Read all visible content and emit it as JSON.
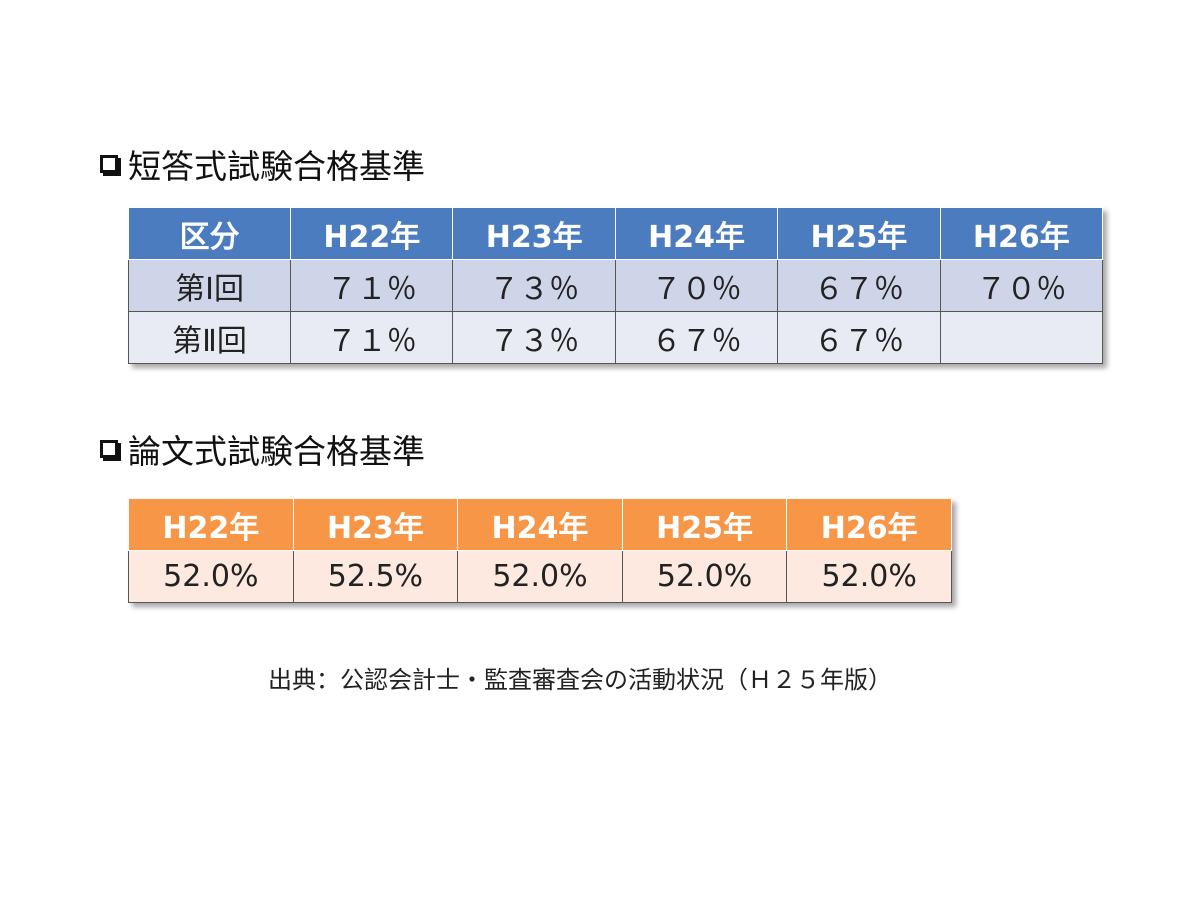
{
  "section1": {
    "title": "短答式試験合格基準",
    "table": {
      "header": [
        "区分",
        "H22年",
        "H23年",
        "H24年",
        "H25年",
        "H26年"
      ],
      "rows": [
        [
          "第Ⅰ回",
          "７１％",
          "７３％",
          "７０％",
          "６７％",
          "７０％"
        ],
        [
          "第Ⅱ回",
          "７１％",
          "７３％",
          "６７％",
          "６７％",
          null
        ]
      ]
    }
  },
  "section2": {
    "title": "論文式試験合格基準",
    "table": {
      "header": [
        "H22年",
        "H23年",
        "H24年",
        "H25年",
        "H26年"
      ],
      "rows": [
        [
          "52.0%",
          "52.5%",
          "52.0%",
          "52.0%",
          "52.0%"
        ]
      ]
    }
  },
  "source": "出典：公認会計士・監査審査会の活動状況（Ｈ２５年版）"
}
